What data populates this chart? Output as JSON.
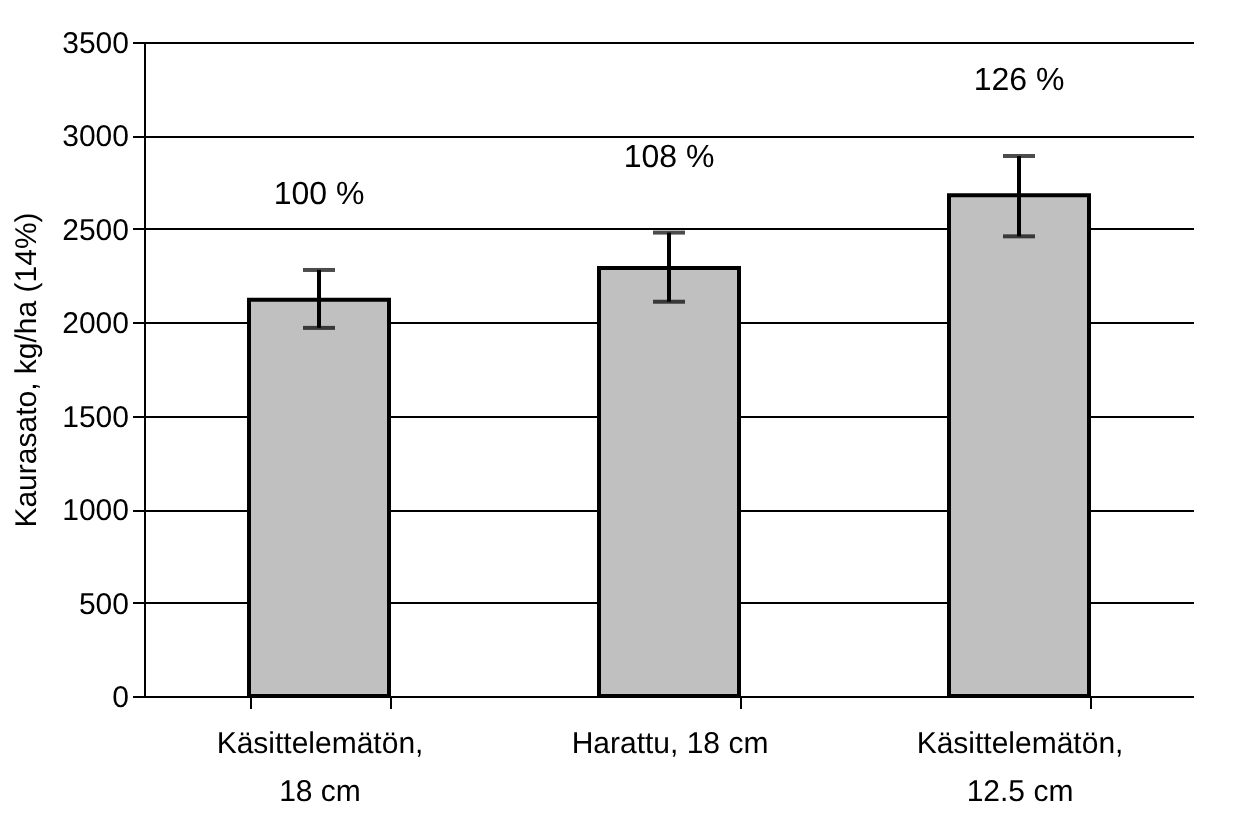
{
  "chart_data": {
    "type": "bar",
    "ylabel": "Kaurasato, kg/ha (14%)",
    "categories": [
      "Käsittelemätön,\n18 cm",
      "Harattu, 18 cm",
      "Käsittelemätön,\n12.5 cm"
    ],
    "values": [
      2120,
      2290,
      2680
    ],
    "color": "#c0c0c0",
    "errors": [
      [
        1970,
        2280
      ],
      [
        2110,
        2480
      ],
      [
        2460,
        2890
      ]
    ],
    "annotations": [
      "100 %",
      "108 %",
      "126 %"
    ],
    "ylim": [
      0,
      3500
    ],
    "yticks": [
      0,
      500,
      1000,
      1500,
      2000,
      2500,
      3000,
      3500
    ],
    "grid": "y"
  }
}
